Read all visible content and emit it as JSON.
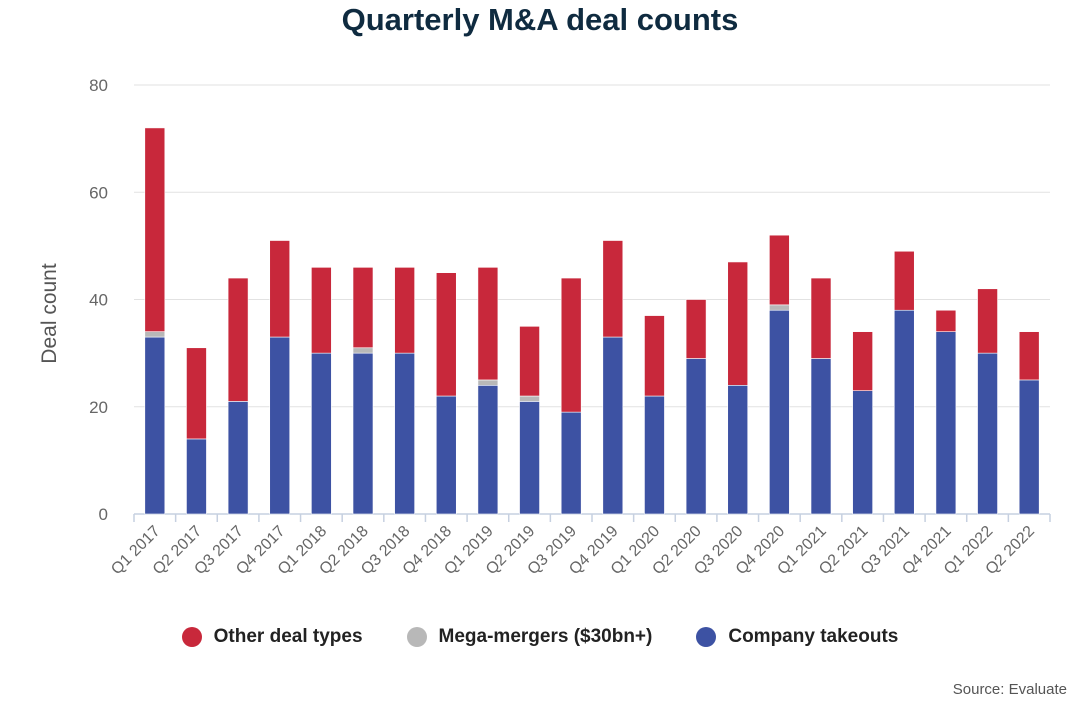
{
  "chart_data": {
    "type": "bar",
    "stacked": true,
    "title": "Quarterly M&A deal counts",
    "ylabel": "Deal count",
    "xlabel": "",
    "ylim": [
      0,
      80
    ],
    "yticks": [
      0,
      20,
      40,
      60,
      80
    ],
    "grid": true,
    "legend_position": "bottom",
    "categories": [
      "Q1 2017",
      "Q2 2017",
      "Q3 2017",
      "Q4 2017",
      "Q1 2018",
      "Q2 2018",
      "Q3 2018",
      "Q4 2018",
      "Q1 2019",
      "Q2 2019",
      "Q3 2019",
      "Q4 2019",
      "Q1 2020",
      "Q2 2020",
      "Q3 2020",
      "Q4 2020",
      "Q1 2021",
      "Q2 2021",
      "Q3 2021",
      "Q4 2021",
      "Q1 2022",
      "Q2 2022"
    ],
    "series": [
      {
        "name": "Company takeouts",
        "color": "#3d52a3",
        "values": [
          33,
          14,
          21,
          33,
          30,
          30,
          30,
          22,
          24,
          21,
          19,
          33,
          22,
          29,
          24,
          38,
          29,
          23,
          38,
          34,
          30,
          25
        ]
      },
      {
        "name": "Mega-mergers ($30bn+)",
        "color": "#b8b8b8",
        "values": [
          1,
          0,
          0,
          0,
          0,
          1,
          0,
          0,
          1,
          1,
          0,
          0,
          0,
          0,
          0,
          1,
          0,
          0,
          0,
          0,
          0,
          0
        ]
      },
      {
        "name": "Other deal types",
        "color": "#c8283b",
        "values": [
          38,
          17,
          23,
          18,
          16,
          15,
          16,
          23,
          21,
          13,
          25,
          18,
          15,
          11,
          23,
          13,
          15,
          11,
          11,
          4,
          12,
          9
        ]
      }
    ],
    "legend_order": [
      "Other deal types",
      "Mega-mergers ($30bn+)",
      "Company takeouts"
    ],
    "source": "Source: Evaluate"
  }
}
